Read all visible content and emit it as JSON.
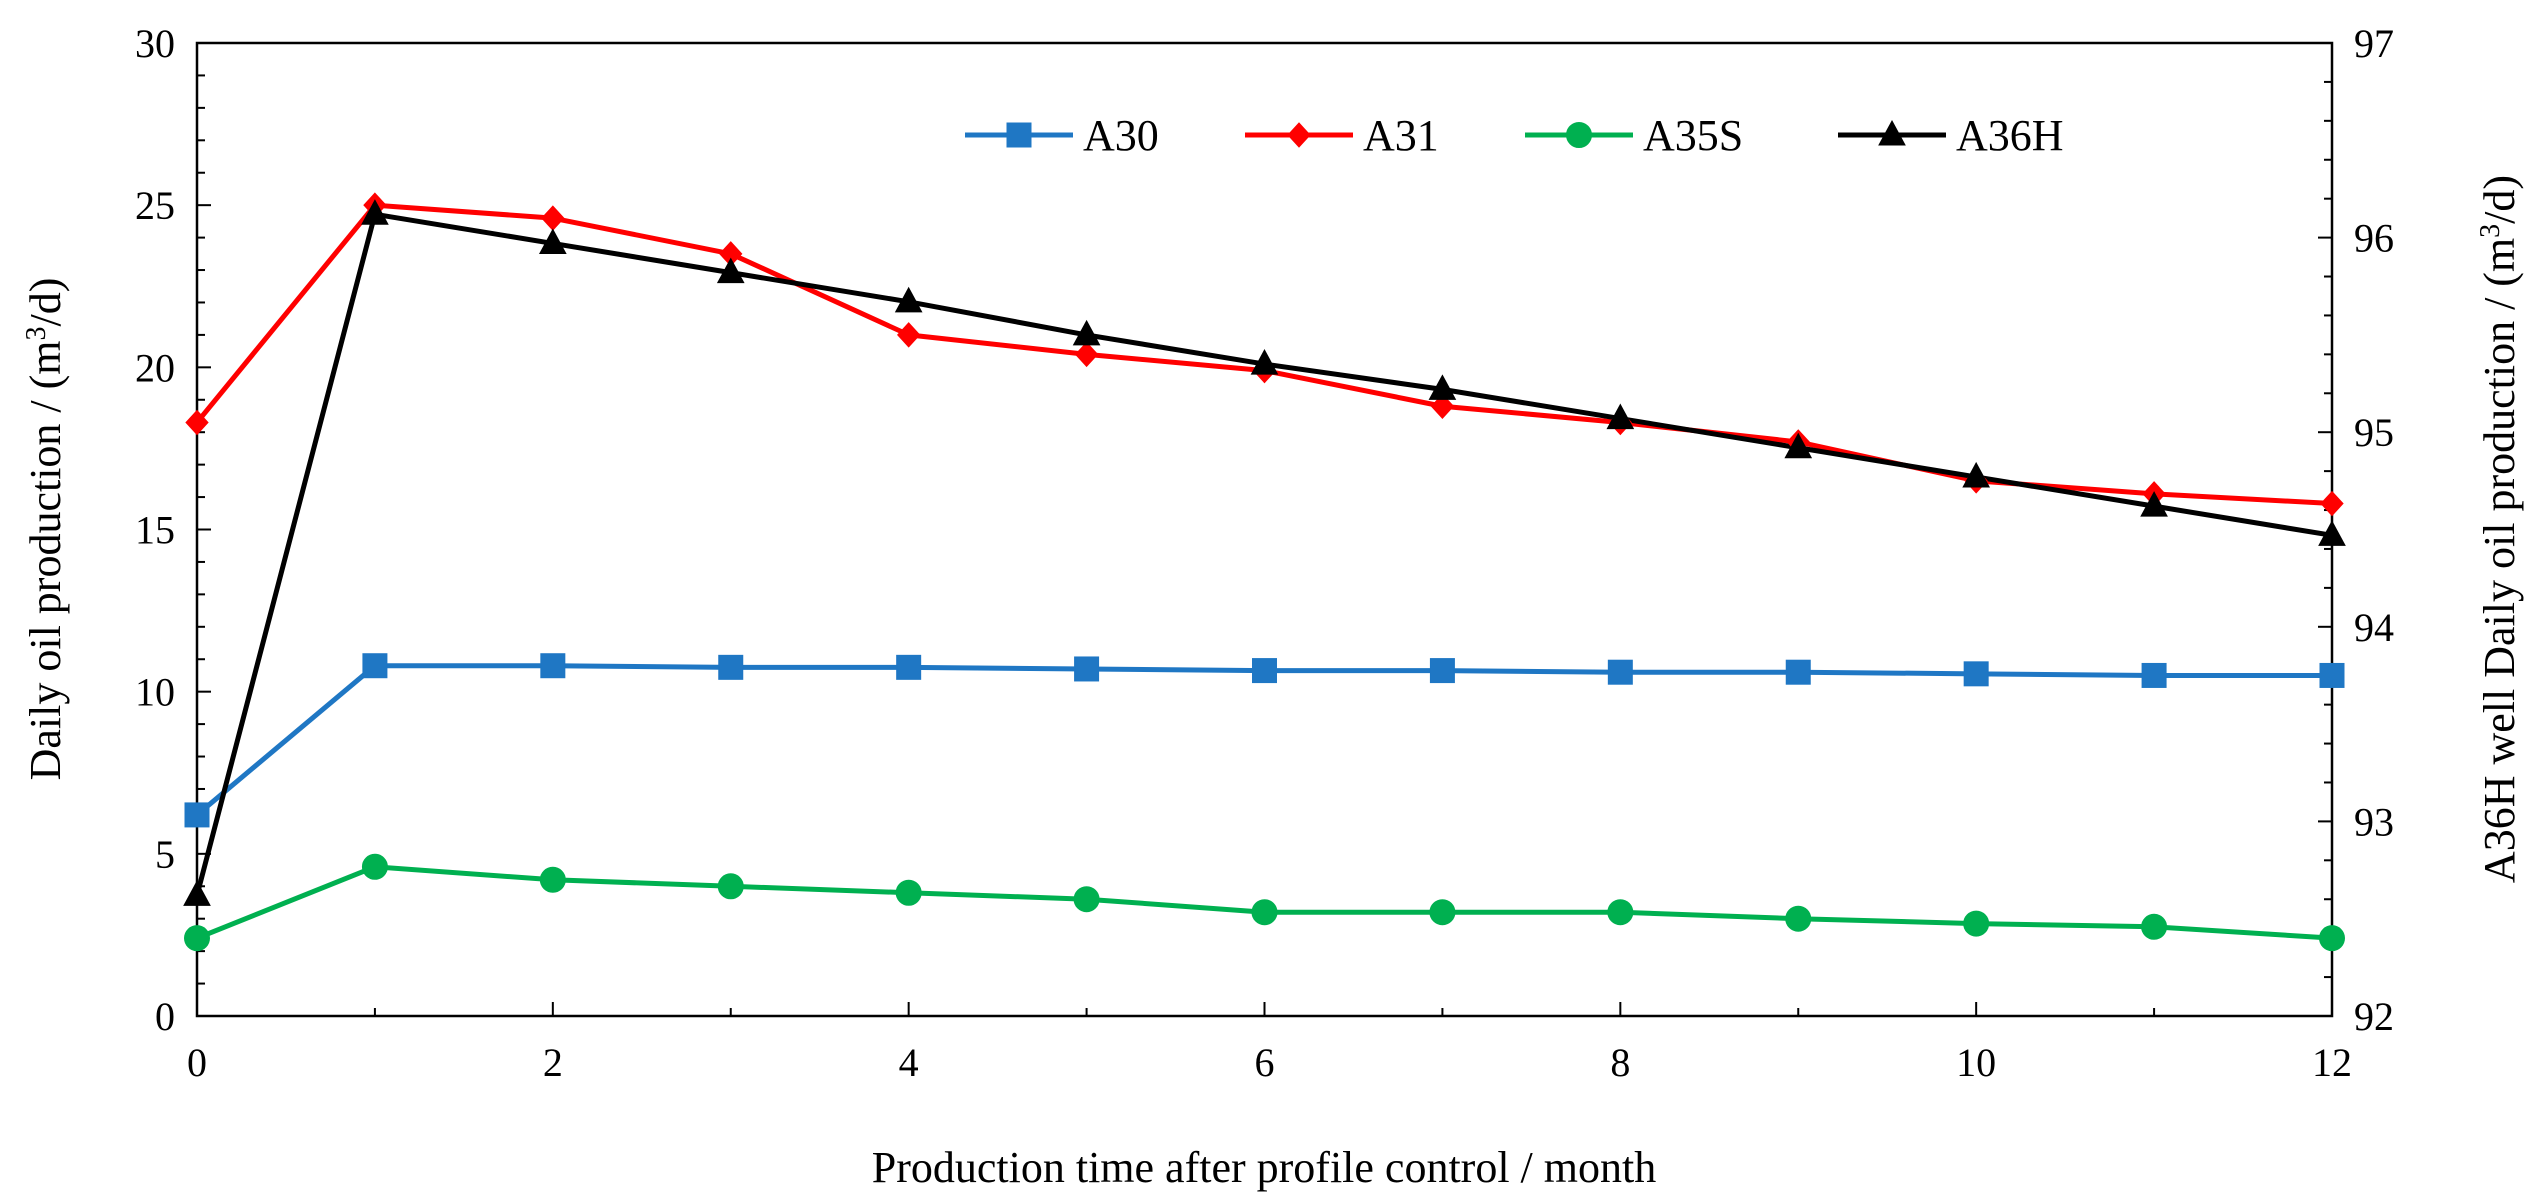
{
  "chart_data": {
    "type": "line",
    "title": "",
    "xlabel": "Production time after profile control / month",
    "ylabel": "Daily  oil production  / (m³/d)",
    "ylabel_parts": [
      "Daily  oil production  / (m",
      "3",
      "/d)"
    ],
    "y2label": "A36H  well Daily  oil production / (m³/d)",
    "y2label_parts": [
      "A36H  well Daily  oil production / (m",
      "3",
      "/d)"
    ],
    "xlim": [
      0,
      12
    ],
    "ylim": [
      0,
      30
    ],
    "y2lim": [
      92,
      97
    ],
    "x_ticks": [
      "0",
      "2",
      "4",
      "6",
      "8",
      "10",
      "12"
    ],
    "y_ticks": [
      "0",
      "5",
      "10",
      "15",
      "20",
      "25",
      "30"
    ],
    "y2_ticks": [
      "92",
      "93",
      "94",
      "95",
      "96",
      "97"
    ],
    "grid": false,
    "legend_position": "top-right",
    "x": [
      0,
      1,
      2,
      3,
      4,
      5,
      6,
      7,
      8,
      9,
      10,
      11,
      12
    ],
    "series": [
      {
        "name": "A30",
        "axis": "left",
        "color": "#1F77C4",
        "marker": "square",
        "values": [
          6.2,
          10.8,
          10.8,
          10.75,
          10.75,
          10.7,
          10.65,
          10.65,
          10.6,
          10.6,
          10.55,
          10.5,
          10.5
        ]
      },
      {
        "name": "A31",
        "axis": "left",
        "color": "#FF0000",
        "marker": "diamond",
        "values": [
          18.3,
          25.0,
          24.6,
          23.5,
          21.0,
          20.4,
          19.9,
          18.8,
          18.3,
          17.7,
          16.5,
          16.1,
          15.8
        ]
      },
      {
        "name": "A35S",
        "axis": "left",
        "color": "#00B050",
        "marker": "circle",
        "values": [
          2.4,
          4.6,
          4.2,
          4.0,
          3.8,
          3.6,
          3.2,
          3.2,
          3.2,
          3.0,
          2.85,
          2.75,
          2.4
        ]
      },
      {
        "name": "A36H",
        "axis": "right",
        "color": "#000000",
        "marker": "triangle",
        "values": [
          92.62,
          96.12,
          95.97,
          95.82,
          95.67,
          95.5,
          95.35,
          95.22,
          95.07,
          94.92,
          94.77,
          94.62,
          94.47
        ]
      }
    ]
  }
}
